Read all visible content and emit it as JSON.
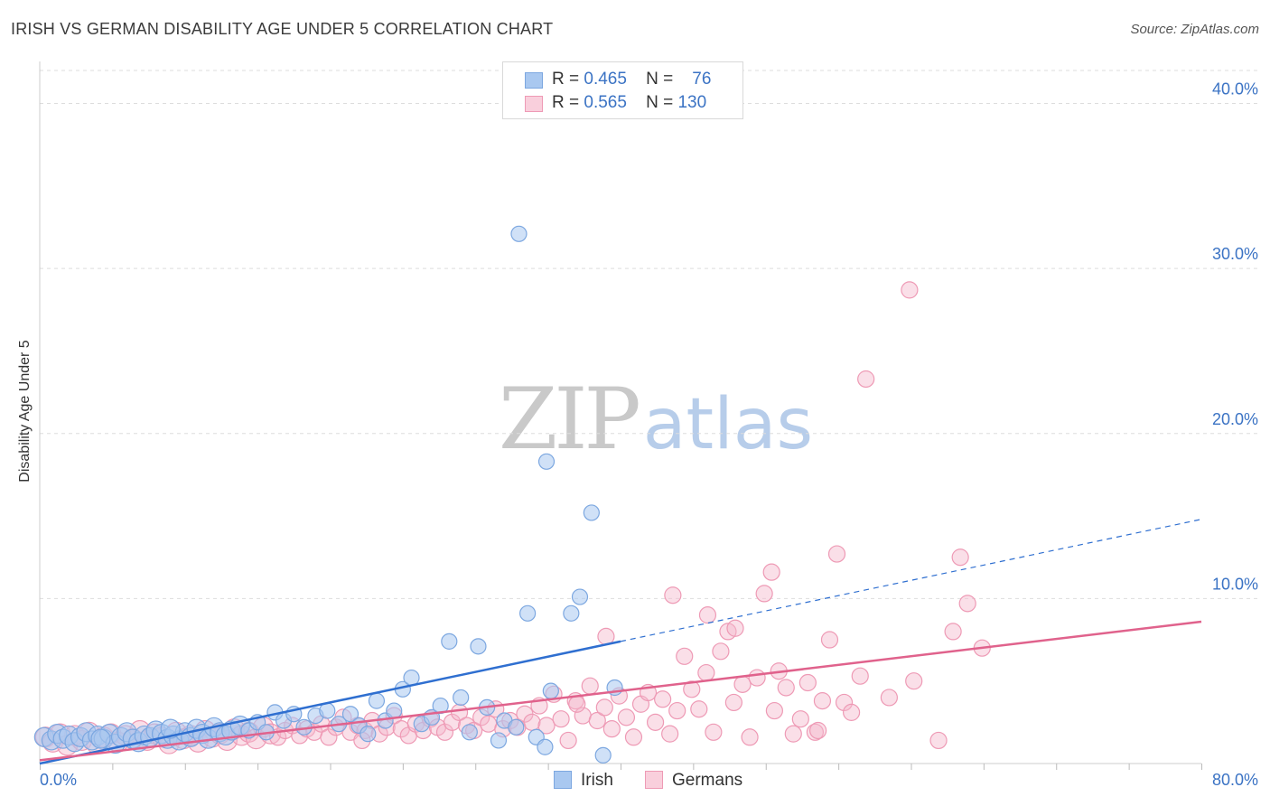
{
  "header": {
    "title": "IRISH VS GERMAN DISABILITY AGE UNDER 5 CORRELATION CHART",
    "source": "Source: ZipAtlas.com"
  },
  "watermark": {
    "zip": "ZIP",
    "atlas": "atlas"
  },
  "legend": {
    "irish": {
      "r_label": "R =",
      "r_value": "0.465",
      "n_label": "N =",
      "n_value": "76"
    },
    "germans": {
      "r_label": "R =",
      "r_value": "0.565",
      "n_label": "N =",
      "n_value": "130"
    }
  },
  "bottom_legend": {
    "irish": "Irish",
    "germans": "Germans"
  },
  "colors": {
    "irish_fill": "#a9c8f0",
    "irish_stroke": "#7ca7e0",
    "irish_line": "#2f6fd0",
    "german_fill": "#f5b8cb",
    "german_stroke": "#ee9ab5",
    "german_line": "#e0628c",
    "tick_label": "#3b73c4",
    "grid": "#dddddd"
  },
  "chart_data": {
    "type": "scatter",
    "title": "IRISH VS GERMAN DISABILITY AGE UNDER 5 CORRELATION CHART",
    "xlabel": "",
    "ylabel": "Disability Age Under 5",
    "xlim": [
      0,
      80
    ],
    "ylim": [
      0,
      42
    ],
    "x_tick_labels": [
      "0.0%",
      "80.0%"
    ],
    "y_ticks": [
      10,
      20,
      30,
      40
    ],
    "y_tick_labels": [
      "10.0%",
      "20.0%",
      "30.0%",
      "40.0%"
    ],
    "grid": true,
    "legend_position": "top-center",
    "series": [
      {
        "name": "Irish",
        "trendline": {
          "x_start": 0,
          "y_start": 0.0,
          "x_solid_end": 40,
          "y_solid_end": 7.4,
          "x_end": 80,
          "y_end": 14.8
        },
        "points": [
          [
            0.3,
            1.6
          ],
          [
            0.8,
            1.4
          ],
          [
            1.2,
            1.8
          ],
          [
            1.6,
            1.5
          ],
          [
            2.0,
            1.7
          ],
          [
            2.4,
            1.3
          ],
          [
            2.8,
            1.6
          ],
          [
            3.2,
            1.9
          ],
          [
            3.6,
            1.4
          ],
          [
            4.0,
            1.7
          ],
          [
            4.4,
            1.5
          ],
          [
            4.8,
            1.8
          ],
          [
            5.2,
            1.2
          ],
          [
            5.6,
            1.6
          ],
          [
            6.0,
            1.9
          ],
          [
            6.4,
            1.5
          ],
          [
            6.8,
            1.3
          ],
          [
            7.2,
            1.7
          ],
          [
            7.6,
            1.6
          ],
          [
            8.0,
            2.0
          ],
          [
            8.4,
            1.8
          ],
          [
            8.8,
            1.5
          ],
          [
            9.2,
            1.7
          ],
          [
            9.6,
            1.4
          ],
          [
            10.0,
            1.9
          ],
          [
            10.4,
            1.6
          ],
          [
            10.8,
            2.1
          ],
          [
            11.2,
            1.8
          ],
          [
            11.6,
            1.5
          ],
          [
            12.0,
            2.2
          ],
          [
            12.4,
            1.9
          ],
          [
            12.8,
            1.7
          ],
          [
            13.2,
            2.0
          ],
          [
            13.8,
            2.3
          ],
          [
            14.4,
            2.0
          ],
          [
            15.0,
            2.5
          ],
          [
            15.6,
            1.9
          ],
          [
            16.2,
            3.1
          ],
          [
            16.8,
            2.6
          ],
          [
            17.5,
            3.0
          ],
          [
            18.2,
            2.2
          ],
          [
            19.0,
            2.9
          ],
          [
            19.8,
            3.2
          ],
          [
            20.6,
            2.4
          ],
          [
            21.4,
            3.0
          ],
          [
            22.0,
            2.3
          ],
          [
            22.6,
            1.8
          ],
          [
            23.2,
            3.8
          ],
          [
            23.8,
            2.6
          ],
          [
            24.4,
            3.2
          ],
          [
            25.0,
            4.5
          ],
          [
            25.6,
            5.2
          ],
          [
            26.3,
            2.4
          ],
          [
            27.0,
            2.8
          ],
          [
            27.6,
            3.5
          ],
          [
            28.2,
            7.4
          ],
          [
            29.0,
            4.0
          ],
          [
            29.6,
            1.9
          ],
          [
            30.2,
            7.1
          ],
          [
            30.8,
            3.4
          ],
          [
            31.6,
            1.4
          ],
          [
            32.0,
            2.6
          ],
          [
            32.8,
            2.2
          ],
          [
            33.6,
            9.1
          ],
          [
            34.2,
            1.6
          ],
          [
            34.8,
            1.0
          ],
          [
            35.2,
            4.4
          ],
          [
            36.6,
            9.1
          ],
          [
            37.2,
            10.1
          ],
          [
            38.0,
            15.2
          ],
          [
            38.8,
            0.5
          ],
          [
            39.6,
            4.6
          ],
          [
            34.9,
            18.3
          ],
          [
            33.0,
            32.1
          ],
          [
            4.2,
            1.5
          ],
          [
            9.0,
            2.1
          ]
        ]
      },
      {
        "name": "Germans",
        "trendline": {
          "x_start": 0,
          "y_start": 0.2,
          "x_end": 80,
          "y_end": 8.6
        },
        "points": [
          [
            0.4,
            1.6
          ],
          [
            0.9,
            1.3
          ],
          [
            1.4,
            1.8
          ],
          [
            1.9,
            1.1
          ],
          [
            2.4,
            1.7
          ],
          [
            2.9,
            1.4
          ],
          [
            3.4,
            1.9
          ],
          [
            3.9,
            1.2
          ],
          [
            4.4,
            1.6
          ],
          [
            4.9,
            1.8
          ],
          [
            5.4,
            1.3
          ],
          [
            5.9,
            1.7
          ],
          [
            6.4,
            1.5
          ],
          [
            6.9,
            2.0
          ],
          [
            7.4,
            1.4
          ],
          [
            7.9,
            1.8
          ],
          [
            8.4,
            1.6
          ],
          [
            8.9,
            1.2
          ],
          [
            9.4,
            1.9
          ],
          [
            9.9,
            1.5
          ],
          [
            10.4,
            1.7
          ],
          [
            10.9,
            1.3
          ],
          [
            11.4,
            2.0
          ],
          [
            11.9,
            1.6
          ],
          [
            12.4,
            1.8
          ],
          [
            12.9,
            1.4
          ],
          [
            13.4,
            2.1
          ],
          [
            13.9,
            1.7
          ],
          [
            14.4,
            1.9
          ],
          [
            14.9,
            1.5
          ],
          [
            15.4,
            2.2
          ],
          [
            15.9,
            1.8
          ],
          [
            16.4,
            1.6
          ],
          [
            16.9,
            2.0
          ],
          [
            17.4,
            2.3
          ],
          [
            17.9,
            1.7
          ],
          [
            18.4,
            2.1
          ],
          [
            18.9,
            1.9
          ],
          [
            19.4,
            2.4
          ],
          [
            19.9,
            1.6
          ],
          [
            20.4,
            2.2
          ],
          [
            20.9,
            2.8
          ],
          [
            21.4,
            1.9
          ],
          [
            21.9,
            2.3
          ],
          [
            22.4,
            2.0
          ],
          [
            22.9,
            2.6
          ],
          [
            23.4,
            1.8
          ],
          [
            23.9,
            2.2
          ],
          [
            24.4,
            2.9
          ],
          [
            24.9,
            2.1
          ],
          [
            25.4,
            1.7
          ],
          [
            25.9,
            2.4
          ],
          [
            26.4,
            2.0
          ],
          [
            26.9,
            2.7
          ],
          [
            27.4,
            2.2
          ],
          [
            27.9,
            1.9
          ],
          [
            28.4,
            2.5
          ],
          [
            28.9,
            3.1
          ],
          [
            29.4,
            2.3
          ],
          [
            29.9,
            2.0
          ],
          [
            30.4,
            2.8
          ],
          [
            30.9,
            2.4
          ],
          [
            31.4,
            3.3
          ],
          [
            31.9,
            2.1
          ],
          [
            32.4,
            2.6
          ],
          [
            32.9,
            2.2
          ],
          [
            33.4,
            3.0
          ],
          [
            33.9,
            2.5
          ],
          [
            34.4,
            3.5
          ],
          [
            34.9,
            2.3
          ],
          [
            35.4,
            4.2
          ],
          [
            35.9,
            2.7
          ],
          [
            36.4,
            1.4
          ],
          [
            36.9,
            3.8
          ],
          [
            37.4,
            2.9
          ],
          [
            37.9,
            4.7
          ],
          [
            38.4,
            2.6
          ],
          [
            38.9,
            3.4
          ],
          [
            39.4,
            2.1
          ],
          [
            39.9,
            4.1
          ],
          [
            40.4,
            2.8
          ],
          [
            40.9,
            1.6
          ],
          [
            41.4,
            3.6
          ],
          [
            41.9,
            4.3
          ],
          [
            42.4,
            2.5
          ],
          [
            42.9,
            3.9
          ],
          [
            43.4,
            1.8
          ],
          [
            43.9,
            3.2
          ],
          [
            44.4,
            6.5
          ],
          [
            44.9,
            4.5
          ],
          [
            45.4,
            3.3
          ],
          [
            45.9,
            5.5
          ],
          [
            46.4,
            1.9
          ],
          [
            46.9,
            6.8
          ],
          [
            47.4,
            8.0
          ],
          [
            47.9,
            8.2
          ],
          [
            48.4,
            4.8
          ],
          [
            48.9,
            1.6
          ],
          [
            49.4,
            5.2
          ],
          [
            49.9,
            10.3
          ],
          [
            50.4,
            11.6
          ],
          [
            50.9,
            5.6
          ],
          [
            51.4,
            4.6
          ],
          [
            51.9,
            1.8
          ],
          [
            52.4,
            2.7
          ],
          [
            52.9,
            4.9
          ],
          [
            53.4,
            1.9
          ],
          [
            53.9,
            3.8
          ],
          [
            54.4,
            7.5
          ],
          [
            54.9,
            12.7
          ],
          [
            55.4,
            3.7
          ],
          [
            55.9,
            3.1
          ],
          [
            56.9,
            23.3
          ],
          [
            59.9,
            28.7
          ],
          [
            61.9,
            1.4
          ],
          [
            62.9,
            8.0
          ],
          [
            63.4,
            12.5
          ],
          [
            63.9,
            9.7
          ],
          [
            64.9,
            7.0
          ],
          [
            46.0,
            9.0
          ],
          [
            43.6,
            10.2
          ],
          [
            39.0,
            7.7
          ],
          [
            37.0,
            3.6
          ],
          [
            53.6,
            2.0
          ],
          [
            56.5,
            5.3
          ],
          [
            47.8,
            3.7
          ],
          [
            58.5,
            4.0
          ],
          [
            50.6,
            3.2
          ],
          [
            22.2,
            1.4
          ],
          [
            60.2,
            5.0
          ]
        ]
      }
    ]
  }
}
